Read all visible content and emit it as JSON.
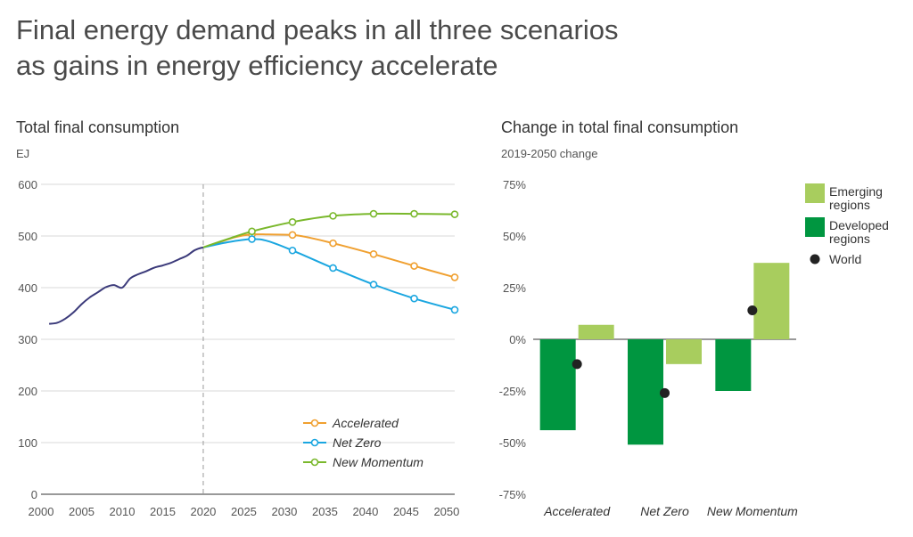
{
  "headline": {
    "line1": "Final energy demand peaks in all three scenarios",
    "line2": "as gains in energy efficiency accelerate"
  },
  "chart_data": [
    {
      "type": "line",
      "title": "Total final consumption",
      "unit_label": "EJ",
      "xlim": [
        2000,
        2051
      ],
      "ylim": [
        0,
        600
      ],
      "x_ticks": [
        2000,
        2005,
        2010,
        2015,
        2020,
        2025,
        2030,
        2035,
        2040,
        2045,
        2050
      ],
      "y_ticks": [
        0,
        100,
        200,
        300,
        400,
        500,
        600
      ],
      "grid": "horizontal",
      "reference_line_x": 2020,
      "legend_position": "bottom-right",
      "history": {
        "color": "#3b3a7a",
        "points": [
          [
            2001,
            330
          ],
          [
            2002,
            332
          ],
          [
            2003,
            340
          ],
          [
            2004,
            352
          ],
          [
            2005,
            368
          ],
          [
            2006,
            381
          ],
          [
            2007,
            391
          ],
          [
            2008,
            401
          ],
          [
            2009,
            405
          ],
          [
            2010,
            400
          ],
          [
            2011,
            418
          ],
          [
            2012,
            426
          ],
          [
            2013,
            432
          ],
          [
            2014,
            439
          ],
          [
            2015,
            443
          ],
          [
            2016,
            448
          ],
          [
            2017,
            455
          ],
          [
            2018,
            462
          ],
          [
            2019,
            473
          ],
          [
            2020,
            478
          ]
        ]
      },
      "series": [
        {
          "name": "Accelerated",
          "color": "#f0a030",
          "points": [
            [
              2020,
              478
            ],
            [
              2022,
              488
            ],
            [
              2024,
              498
            ],
            [
              2026,
              503
            ],
            [
              2028,
              503
            ],
            [
              2031,
              502
            ],
            [
              2033,
              497
            ],
            [
              2036,
              486
            ],
            [
              2041,
              465
            ],
            [
              2046,
              442
            ],
            [
              2051,
              420
            ]
          ],
          "markers": [
            [
              2026,
              503
            ],
            [
              2031,
              502
            ],
            [
              2036,
              486
            ],
            [
              2041,
              465
            ],
            [
              2046,
              442
            ],
            [
              2051,
              420
            ]
          ]
        },
        {
          "name": "Net Zero",
          "color": "#1aa6e0",
          "points": [
            [
              2020,
              478
            ],
            [
              2023,
              488
            ],
            [
              2026,
              494
            ],
            [
              2028,
              490
            ],
            [
              2031,
              472
            ],
            [
              2036,
              438
            ],
            [
              2041,
              406
            ],
            [
              2046,
              379
            ],
            [
              2051,
              357
            ]
          ],
          "markers": [
            [
              2026,
              494
            ],
            [
              2031,
              472
            ],
            [
              2036,
              438
            ],
            [
              2041,
              406
            ],
            [
              2046,
              379
            ],
            [
              2051,
              357
            ]
          ]
        },
        {
          "name": "New Momentum",
          "color": "#7ab82c",
          "points": [
            [
              2020,
              478
            ],
            [
              2023,
              494
            ],
            [
              2026,
              509
            ],
            [
              2031,
              527
            ],
            [
              2036,
              539
            ],
            [
              2041,
              543
            ],
            [
              2046,
              543
            ],
            [
              2051,
              542
            ]
          ],
          "markers": [
            [
              2026,
              509
            ],
            [
              2031,
              527
            ],
            [
              2036,
              539
            ],
            [
              2041,
              543
            ],
            [
              2046,
              543
            ],
            [
              2051,
              542
            ]
          ]
        }
      ]
    },
    {
      "type": "bar",
      "title": "Change in total final consumption",
      "subtitle": "2019-2050 change",
      "ylim": [
        -75,
        75
      ],
      "y_ticks": [
        75,
        50,
        25,
        0,
        -25,
        -50,
        -75
      ],
      "y_tick_labels": [
        "75%",
        "50%",
        "25%",
        "0%",
        "-25%",
        "-50%",
        "-75%"
      ],
      "categories": [
        "Accelerated",
        "Net Zero",
        "New Momentum"
      ],
      "legend_position": "top-right",
      "series": [
        {
          "name": "Developed regions",
          "legend_label": [
            "Developed",
            "regions"
          ],
          "color": "#009640",
          "values": [
            -44,
            -51,
            -25
          ]
        },
        {
          "name": "Emerging regions",
          "legend_label": [
            "Emerging",
            "regions"
          ],
          "color": "#a8cd5e",
          "values": [
            7,
            -12,
            37
          ]
        }
      ],
      "world": {
        "name": "World",
        "color": "#222222",
        "values": [
          -12,
          -26,
          14
        ]
      }
    }
  ]
}
